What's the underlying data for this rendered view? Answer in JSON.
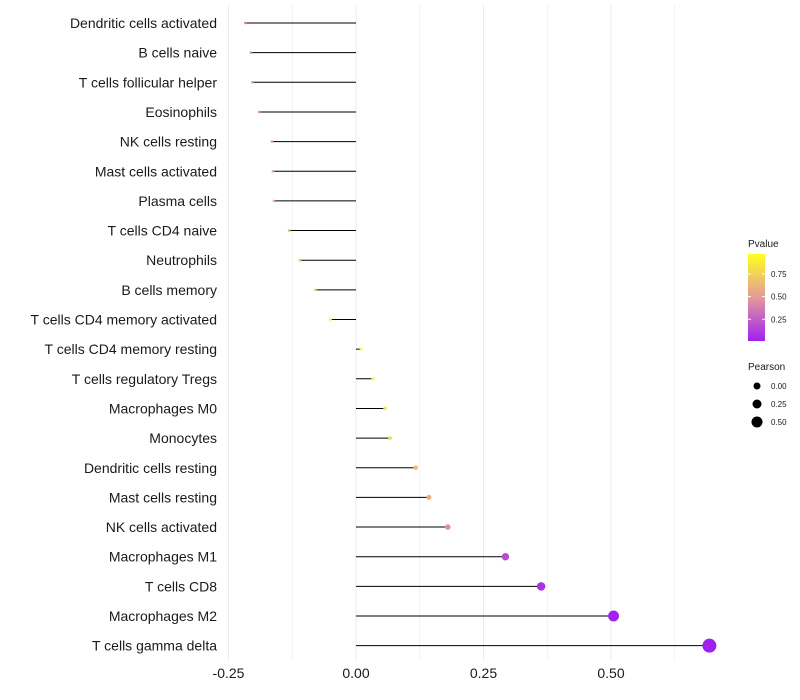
{
  "chart_data": {
    "type": "lollipop",
    "title": "",
    "xlabel": "",
    "ylabel": "",
    "xlim": [
      -0.28,
      0.72
    ],
    "xticks": [
      -0.25,
      0.0,
      0.25,
      0.5
    ],
    "xtick_labels": [
      "-0.25",
      "0.00",
      "0.25",
      "0.50"
    ],
    "grid": "vertical",
    "categories": [
      "Dendritic cells activated",
      "B cells naive",
      "T cells follicular helper",
      "Eosinophils",
      "NK cells resting",
      "Mast cells activated",
      "Plasma cells",
      "T cells CD4 naive",
      "Neutrophils",
      "B cells memory",
      "T cells CD4 memory activated",
      "T cells CD4 memory resting",
      "T cells regulatory  Tregs ",
      "Macrophages M0",
      "Monocytes",
      "Dendritic cells resting",
      "Mast cells resting",
      "NK cells activated",
      "Macrophages M1",
      "T cells CD8",
      "Macrophages M2",
      "T cells gamma delta"
    ],
    "values": [
      -0.217,
      -0.206,
      -0.203,
      -0.19,
      -0.165,
      -0.163,
      -0.161,
      -0.131,
      -0.11,
      -0.08,
      -0.05,
      0.01,
      0.033,
      0.057,
      0.067,
      0.117,
      0.143,
      0.18,
      0.293,
      0.363,
      0.505,
      0.693
    ],
    "pvalues": [
      0.38,
      0.44,
      0.45,
      0.48,
      0.53,
      0.54,
      0.55,
      0.62,
      0.7,
      0.8,
      0.88,
      0.97,
      0.92,
      0.86,
      0.83,
      0.66,
      0.58,
      0.45,
      0.18,
      0.09,
      0.02,
      0.01
    ],
    "legend": {
      "color": {
        "title": "Pvalue",
        "ticks": [
          0.75,
          0.5,
          0.25
        ],
        "tick_labels": [
          "0.75",
          "0.50",
          "0.25"
        ],
        "range": [
          0.01,
          0.97
        ],
        "low_color": "#a020f0",
        "mid_color": "#e39a9a",
        "high_color": "#ffff20"
      },
      "size": {
        "title": "Pearson",
        "ticks": [
          0.0,
          0.25,
          0.5
        ],
        "tick_labels": [
          "0.00",
          "0.25",
          "0.50"
        ]
      },
      "position": "right"
    },
    "colors": {
      "stem": "#000000",
      "grid": "#ebebeb",
      "background": "#ffffff"
    }
  }
}
